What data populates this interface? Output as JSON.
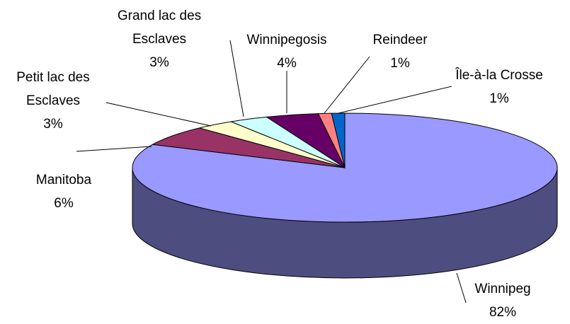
{
  "chart_data": {
    "type": "pie3d",
    "categories": [
      "Winnipeg",
      "Manitoba",
      "Petit lac des Esclaves",
      "Grand lac des Esclaves",
      "Winnipegosis",
      "Reindeer",
      "Île-à-la Crosse"
    ],
    "values": [
      82,
      6,
      3,
      3,
      4,
      1,
      1
    ],
    "value_labels": [
      "82%",
      "6%",
      "3%",
      "3%",
      "4%",
      "1%",
      "1%"
    ],
    "colors": [
      "#9999ff",
      "#993366",
      "#ffffcc",
      "#ccffff",
      "#660066",
      "#ff8080",
      "#0066cc"
    ]
  }
}
